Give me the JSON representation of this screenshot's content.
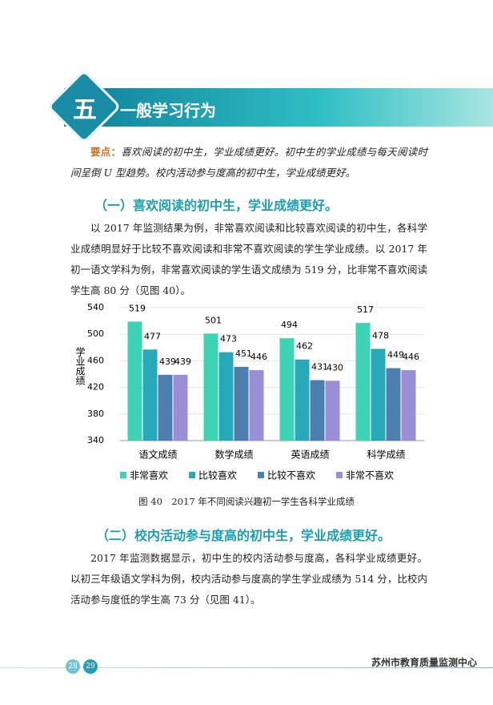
{
  "header": {
    "number": "五",
    "title": "一般学习行为"
  },
  "key_points": {
    "label": "要点：",
    "text": "喜欢阅读的初中生，学业成绩更好。初中生的学业成绩与每天阅读时间呈倒 U 型趋势。校内活动参与度高的初中生，学业成绩更好。"
  },
  "section1": {
    "heading": "（一）喜欢阅读的初中生，学业成绩更好。",
    "paragraph": "以 2017 年监测结果为例，非常喜欢阅读和比较喜欢阅读的初中生，各科学业成绩明显好于比较不喜欢阅读和非常不喜欢阅读的学生学业成绩。以 2017 年初一语文学科为例，非常喜欢阅读的学生语文成绩为 519 分，比非常不喜欢阅读学生高 80 分（见图 40）。"
  },
  "chart_data": {
    "type": "bar",
    "y_label": "学业成绩",
    "categories": [
      "语文成绩",
      "数学成绩",
      "英语成绩",
      "科学成绩"
    ],
    "series": [
      {
        "name": "非常喜欢",
        "color": "#3fd3b6",
        "values": [
          519,
          501,
          494,
          517
        ]
      },
      {
        "name": "比较喜欢",
        "color": "#27a9ba",
        "values": [
          477,
          473,
          462,
          478
        ]
      },
      {
        "name": "比较不喜欢",
        "color": "#4c7fae",
        "values": [
          439,
          451,
          431,
          449
        ]
      },
      {
        "name": "非常不喜欢",
        "color": "#9a8fd6",
        "values": [
          439,
          446,
          430,
          446
        ]
      }
    ],
    "ylim": [
      340,
      540
    ],
    "yticks": [
      340,
      380,
      420,
      460,
      500,
      540
    ],
    "grid": true
  },
  "caption": "图 40　2017 年不同阅读兴趣初一学生各科学业成绩",
  "section2": {
    "heading": "（二）校内活动参与度高的初中生，学业成绩更好。",
    "paragraph": "2017 年监测数据显示，初中生的校内活动参与度高，各科学业成绩更好。以初三年级语文学科为例，校内活动参与度高的学生学业成绩为 514 分，比校内活动参与度低的学生高 73 分（见图 41）。"
  },
  "footer": {
    "pages": [
      "28",
      "29"
    ],
    "org": "苏州市教育质量监测中心"
  }
}
